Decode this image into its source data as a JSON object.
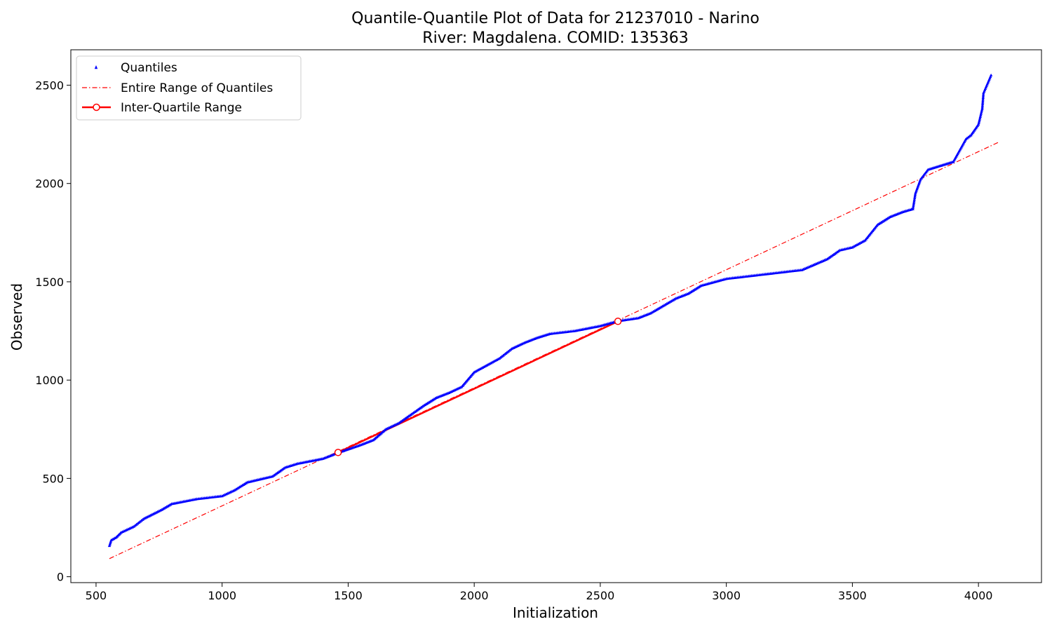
{
  "chart_data": {
    "type": "scatter",
    "title_line1": "Quantile-Quantile Plot of Data for 21237010 - Narino",
    "title_line2": "River: Magdalena. COMID: 135363",
    "xlabel": "Initialization",
    "ylabel": "Observed",
    "xlim": [
      400,
      4250
    ],
    "ylim": [
      -30,
      2680
    ],
    "xticks": [
      500,
      1000,
      1500,
      2000,
      2500,
      3000,
      3500,
      4000
    ],
    "yticks": [
      0,
      500,
      1000,
      1500,
      2000,
      2500
    ],
    "grid": false,
    "legend_position": "top-left",
    "series": [
      {
        "name": "Quantiles",
        "style": "points",
        "marker": "triangle",
        "color": "#0000ff",
        "anchors": [
          [
            553,
            157
          ],
          [
            560,
            185
          ],
          [
            580,
            200
          ],
          [
            600,
            225
          ],
          [
            650,
            255
          ],
          [
            690,
            295
          ],
          [
            760,
            340
          ],
          [
            800,
            370
          ],
          [
            900,
            395
          ],
          [
            1000,
            410
          ],
          [
            1050,
            440
          ],
          [
            1100,
            480
          ],
          [
            1200,
            510
          ],
          [
            1250,
            555
          ],
          [
            1300,
            575
          ],
          [
            1400,
            600
          ],
          [
            1460,
            630
          ],
          [
            1550,
            670
          ],
          [
            1600,
            695
          ],
          [
            1650,
            750
          ],
          [
            1700,
            780
          ],
          [
            1750,
            825
          ],
          [
            1800,
            870
          ],
          [
            1850,
            910
          ],
          [
            1900,
            935
          ],
          [
            1950,
            965
          ],
          [
            2000,
            1040
          ],
          [
            2050,
            1075
          ],
          [
            2100,
            1110
          ],
          [
            2150,
            1160
          ],
          [
            2200,
            1190
          ],
          [
            2250,
            1215
          ],
          [
            2300,
            1235
          ],
          [
            2400,
            1250
          ],
          [
            2500,
            1275
          ],
          [
            2570,
            1300
          ],
          [
            2650,
            1315
          ],
          [
            2700,
            1340
          ],
          [
            2800,
            1415
          ],
          [
            2850,
            1440
          ],
          [
            2900,
            1480
          ],
          [
            3000,
            1515
          ],
          [
            3100,
            1530
          ],
          [
            3200,
            1545
          ],
          [
            3300,
            1560
          ],
          [
            3400,
            1615
          ],
          [
            3450,
            1660
          ],
          [
            3500,
            1675
          ],
          [
            3550,
            1710
          ],
          [
            3600,
            1790
          ],
          [
            3650,
            1830
          ],
          [
            3700,
            1855
          ],
          [
            3740,
            1870
          ],
          [
            3750,
            1950
          ],
          [
            3770,
            2020
          ],
          [
            3800,
            2070
          ],
          [
            3850,
            2090
          ],
          [
            3900,
            2110
          ],
          [
            3950,
            2225
          ],
          [
            3970,
            2245
          ],
          [
            4000,
            2300
          ],
          [
            4015,
            2380
          ],
          [
            4020,
            2460
          ],
          [
            4050,
            2550
          ]
        ]
      },
      {
        "name": "Entire Range of Quantiles",
        "style": "dash-dot line",
        "color": "#ff0000",
        "x": [
          553,
          4080
        ],
        "y": [
          92,
          2210
        ]
      },
      {
        "name": "Inter-Quartile Range",
        "style": "solid line with circle markers",
        "color": "#ff0000",
        "x": [
          1460,
          2570
        ],
        "y": [
          632,
          1299
        ]
      }
    ]
  }
}
